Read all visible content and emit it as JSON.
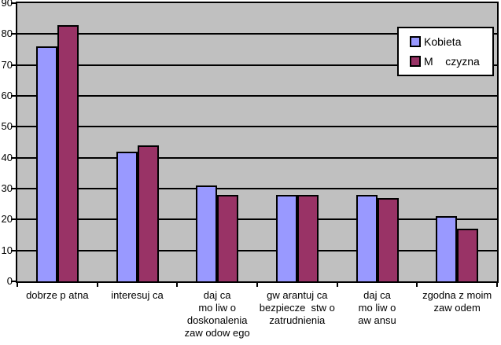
{
  "chart_data": {
    "type": "bar",
    "title": "",
    "xlabel": "",
    "ylabel": "",
    "ylim": [
      0,
      90
    ],
    "ytick_step": 10,
    "ytick_labels": [
      "0",
      "10",
      "20",
      "30",
      "40",
      "50",
      "60",
      "70",
      "80",
      "90"
    ],
    "grid": true,
    "plot_bg_color": "#c0c0c0",
    "gridline_color": "#000000",
    "legend_position": "top-right",
    "categories": [
      "dobrze p atna",
      "interesuj ca",
      "daj ca mo liw o doskonalenia zaw odow ego",
      "gw arantuj ca bezpiecze stw o zatrudnienia",
      "daj ca mo liw o aw ansu",
      "zgodna z moim zaw odem"
    ],
    "categories_lines": [
      [
        "dobrze p atna"
      ],
      [
        "interesuj ca"
      ],
      [
        "daj ca",
        "mo liw o",
        "doskonalenia",
        "zaw odow ego"
      ],
      [
        "gw arantuj ca",
        "bezpiecze  stw o",
        "zatrudnienia"
      ],
      [
        "daj ca",
        "mo liw o",
        "aw ansu"
      ],
      [
        "zgodna z moim",
        "zaw odem"
      ]
    ],
    "series": [
      {
        "name": "Kobieta",
        "color": "#9999ff",
        "values": [
          76,
          42,
          31,
          28,
          28,
          21
        ]
      },
      {
        "name": "M    czyzna",
        "color": "#993366",
        "values": [
          83,
          44,
          28,
          28,
          27,
          17
        ]
      }
    ]
  }
}
